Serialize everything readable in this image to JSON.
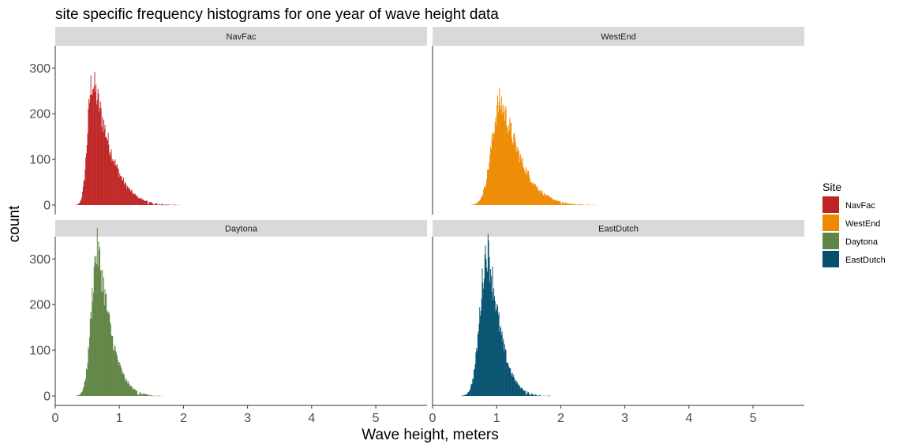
{
  "chart_data": {
    "type": "bar",
    "title": "site specific frequency histograms for one year of wave height data",
    "xlabel": "Wave height, meters",
    "ylabel": "count",
    "xlim": [
      0,
      5.8
    ],
    "ylim": [
      0,
      335
    ],
    "x_ticks": [
      "0",
      "1",
      "2",
      "3",
      "4",
      "5"
    ],
    "y_ticks": [
      "0",
      "100",
      "200",
      "300"
    ],
    "grid": false,
    "legend_position": "right",
    "legend_title": "Site",
    "bin_width_m": 0.01,
    "panels": [
      {
        "name": "NavFac",
        "color": "#bf2424",
        "shape": {
          "start": 0.25,
          "mode": 0.57,
          "peak": 270,
          "rise": 0.07,
          "decay": 0.34,
          "end": 4.7
        },
        "profile_x": [
          0.25,
          0.4,
          0.5,
          0.57,
          0.7,
          0.9,
          1.0,
          1.2,
          1.5,
          1.75,
          2.0,
          2.5,
          3.0,
          4.0,
          4.7
        ],
        "profile_y": [
          0,
          130,
          220,
          270,
          190,
          150,
          140,
          110,
          60,
          35,
          22,
          8,
          3,
          1,
          0
        ]
      },
      {
        "name": "WestEnd",
        "color": "#ed8a00",
        "shape": {
          "start": 0.55,
          "mode": 1.05,
          "peak": 225,
          "rise": 0.13,
          "decay": 0.38,
          "end": 4.0
        },
        "profile_x": [
          0.55,
          0.75,
          0.95,
          1.05,
          1.2,
          1.4,
          1.6,
          2.0,
          2.5,
          3.0,
          3.5,
          4.0
        ],
        "profile_y": [
          0,
          50,
          185,
          225,
          190,
          125,
          90,
          60,
          25,
          8,
          2,
          0
        ]
      },
      {
        "name": "Daytona",
        "color": "#5f8443",
        "shape": {
          "start": 0.25,
          "mode": 0.65,
          "peak": 320,
          "rise": 0.09,
          "decay": 0.25,
          "end": 2.2
        },
        "profile_x": [
          0.25,
          0.4,
          0.5,
          0.65,
          0.8,
          1.0,
          1.2,
          1.5,
          1.8,
          2.2
        ],
        "profile_y": [
          0,
          30,
          180,
          320,
          240,
          150,
          80,
          35,
          12,
          0
        ]
      },
      {
        "name": "EastDutch",
        "color": "#04506e",
        "shape": {
          "start": 0.33,
          "mode": 0.85,
          "peak": 320,
          "rise": 0.11,
          "decay": 0.24,
          "end": 2.25
        },
        "profile_x": [
          0.33,
          0.5,
          0.65,
          0.85,
          1.0,
          1.2,
          1.4,
          1.7,
          2.0,
          2.25
        ],
        "profile_y": [
          0,
          25,
          180,
          320,
          250,
          120,
          70,
          30,
          8,
          0
        ]
      }
    ]
  }
}
